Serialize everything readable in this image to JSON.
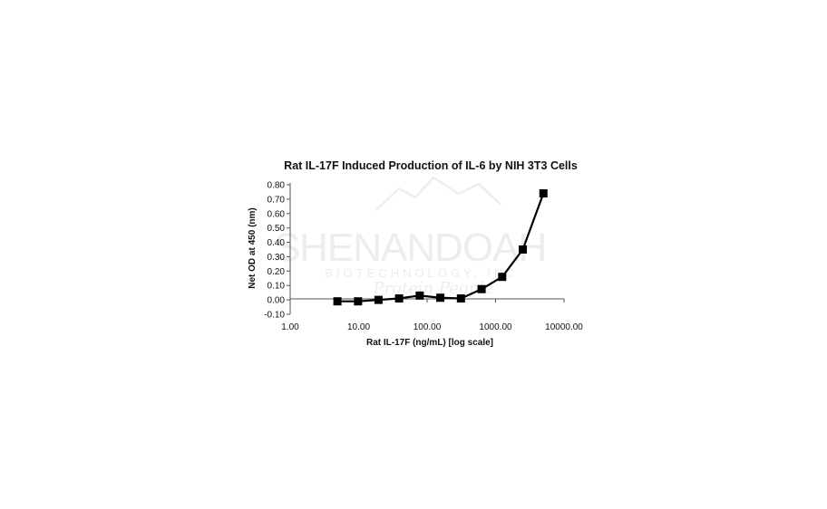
{
  "chart_data": {
    "type": "line",
    "title": "Rat IL-17F Induced Production of IL-6 by NIH 3T3 Cells",
    "xlabel": "Rat IL-17F (ng/mL) [log scale]",
    "ylabel": "Net OD at 450 (nm)",
    "x_scale": "log",
    "xlim": [
      1,
      10000
    ],
    "ylim": [
      -0.1,
      0.8
    ],
    "x_ticks": [
      "1.00",
      "10.00",
      "100.00",
      "1000.00",
      "10000.00"
    ],
    "y_ticks": [
      "-0.10",
      "0.00",
      "0.10",
      "0.20",
      "0.30",
      "0.40",
      "0.50",
      "0.60",
      "0.70",
      "0.80"
    ],
    "grid": false,
    "legend": "none",
    "marker": "square",
    "series": [
      {
        "color": "#000000",
        "x": [
          4.9,
          9.8,
          19.5,
          39,
          78,
          156,
          312,
          625,
          1250,
          2500,
          5000
        ],
        "y": [
          -0.01,
          -0.01,
          0.0,
          0.01,
          0.03,
          0.015,
          0.01,
          0.075,
          0.16,
          0.35,
          0.74
        ]
      }
    ]
  },
  "watermark": {
    "brand": "SHENANDOAH",
    "sub": "BIOTECHNOLOGY, INC",
    "script": "Protein People"
  }
}
